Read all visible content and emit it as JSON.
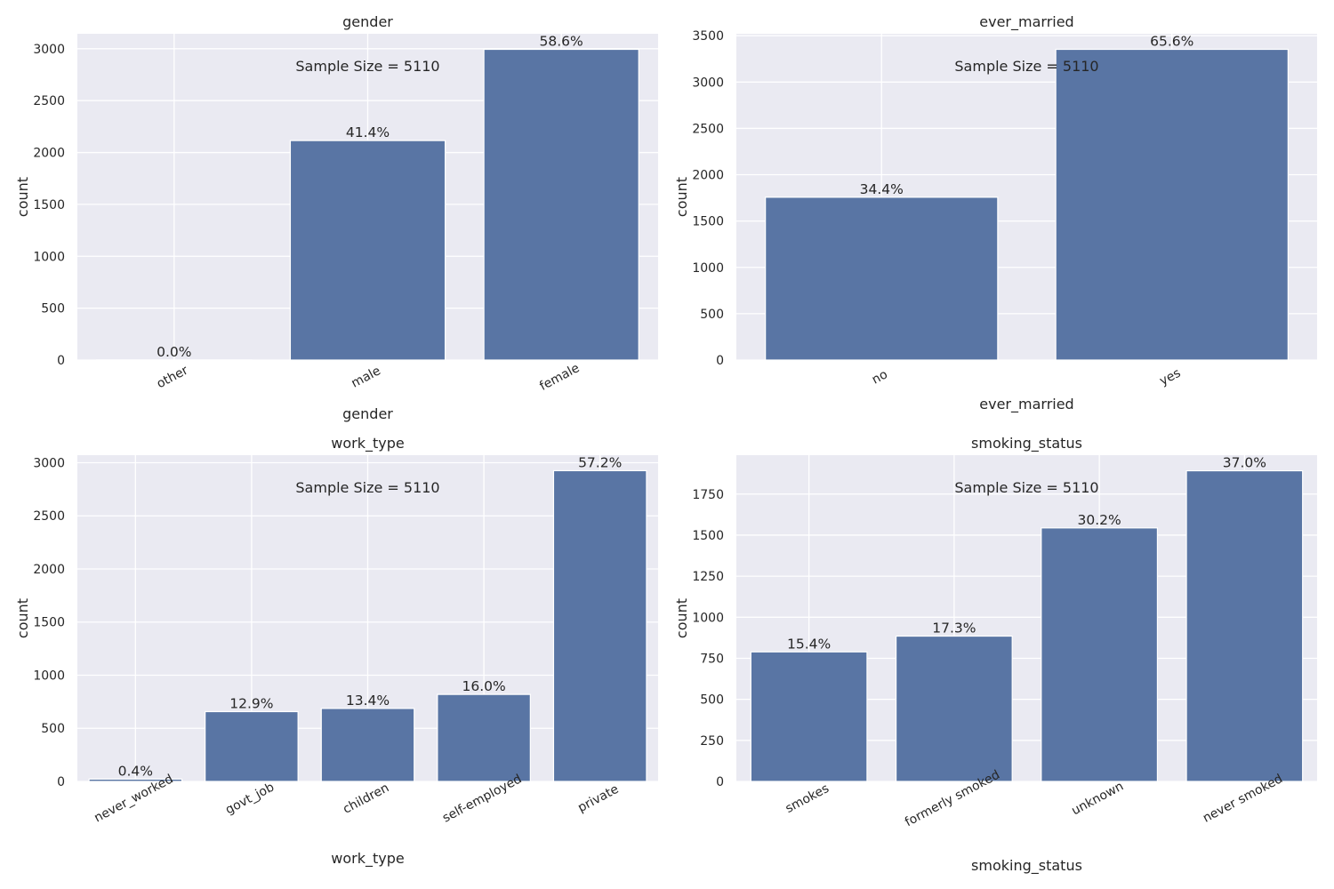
{
  "colors": {
    "bar": "#5975a4",
    "panel": "#eaeaf2",
    "grid": "#ffffff",
    "text": "#262626"
  },
  "chart_data": [
    {
      "type": "bar",
      "title": "gender",
      "xlabel": "gender",
      "ylabel": "count",
      "categories": [
        "other",
        "male",
        "female"
      ],
      "values": [
        1,
        2115,
        2994
      ],
      "data_labels": [
        "0.0%",
        "41.4%",
        "58.6%"
      ],
      "ylim": [
        0,
        3144
      ],
      "yticks": [
        0,
        500,
        1000,
        1500,
        2000,
        2500,
        3000
      ],
      "annotation": "Sample Size = 5110",
      "grid": true
    },
    {
      "type": "bar",
      "title": "ever_married",
      "xlabel": "ever_married",
      "ylabel": "count",
      "categories": [
        "no",
        "yes"
      ],
      "values": [
        1757,
        3353
      ],
      "data_labels": [
        "34.4%",
        "65.6%"
      ],
      "ylim": [
        0,
        3521
      ],
      "yticks": [
        0,
        500,
        1000,
        1500,
        2000,
        2500,
        3000,
        3500
      ],
      "annotation": "Sample Size = 5110",
      "grid": true
    },
    {
      "type": "bar",
      "title": "work_type",
      "xlabel": "work_type",
      "ylabel": "count",
      "categories": [
        "never_worked",
        "govt_job",
        "children",
        "self-employed",
        "private"
      ],
      "values": [
        22,
        657,
        687,
        819,
        2925
      ],
      "data_labels": [
        "0.4%",
        "12.9%",
        "13.4%",
        "16.0%",
        "57.2%"
      ],
      "ylim": [
        0,
        3071
      ],
      "yticks": [
        0,
        500,
        1000,
        1500,
        2000,
        2500,
        3000
      ],
      "annotation": "Sample Size = 5110",
      "grid": true
    },
    {
      "type": "bar",
      "title": "smoking_status",
      "xlabel": "smoking_status",
      "ylabel": "count",
      "categories": [
        "smokes",
        "formerly smoked",
        "unknown",
        "never smoked"
      ],
      "values": [
        789,
        885,
        1544,
        1892
      ],
      "data_labels": [
        "15.4%",
        "17.3%",
        "30.2%",
        "37.0%"
      ],
      "ylim": [
        0,
        1987
      ],
      "yticks": [
        0,
        250,
        500,
        750,
        1000,
        1250,
        1500,
        1750
      ],
      "annotation": "Sample Size = 5110",
      "grid": true
    }
  ]
}
